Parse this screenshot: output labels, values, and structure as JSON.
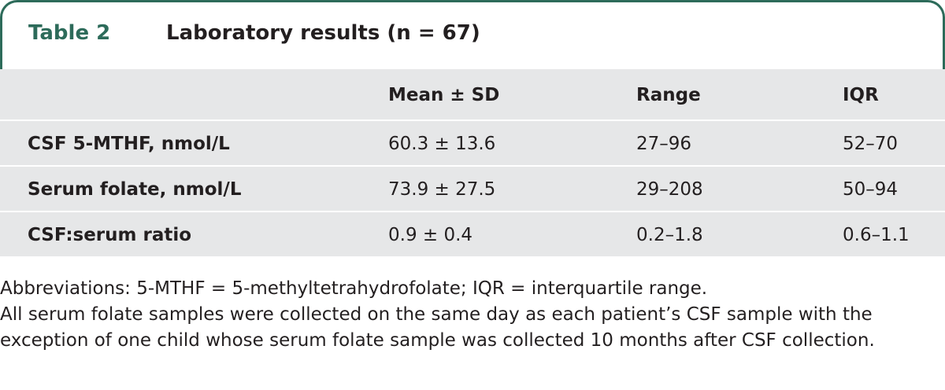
{
  "table": {
    "label": "Table 2",
    "title": "Laboratory results (n = 67)",
    "columns": [
      "",
      "Mean ± SD",
      "Range",
      "IQR"
    ],
    "rows": [
      [
        "CSF 5-MTHF, nmol/L",
        "60.3 ± 13.6",
        "27–96",
        "52–70"
      ],
      [
        "Serum folate, nmol/L",
        "73.9 ± 27.5",
        "29–208",
        "50–94"
      ],
      [
        "CSF:serum ratio",
        "0.9 ± 0.4",
        "0.2–1.8",
        "0.6–1.1"
      ]
    ]
  },
  "footnotes": {
    "abbreviations": "Abbreviations: 5-MTHF = 5-methyltetrahydrofolate; IQR = interquartile range.",
    "note": "All serum folate samples were collected on the same day as each patient’s CSF sample with the exception of one child whose serum folate sample was collected 10 months after CSF collection."
  },
  "colors": {
    "accent": "#2d6b5a",
    "row_background": "#e6e7e8",
    "text": "#231f20"
  }
}
